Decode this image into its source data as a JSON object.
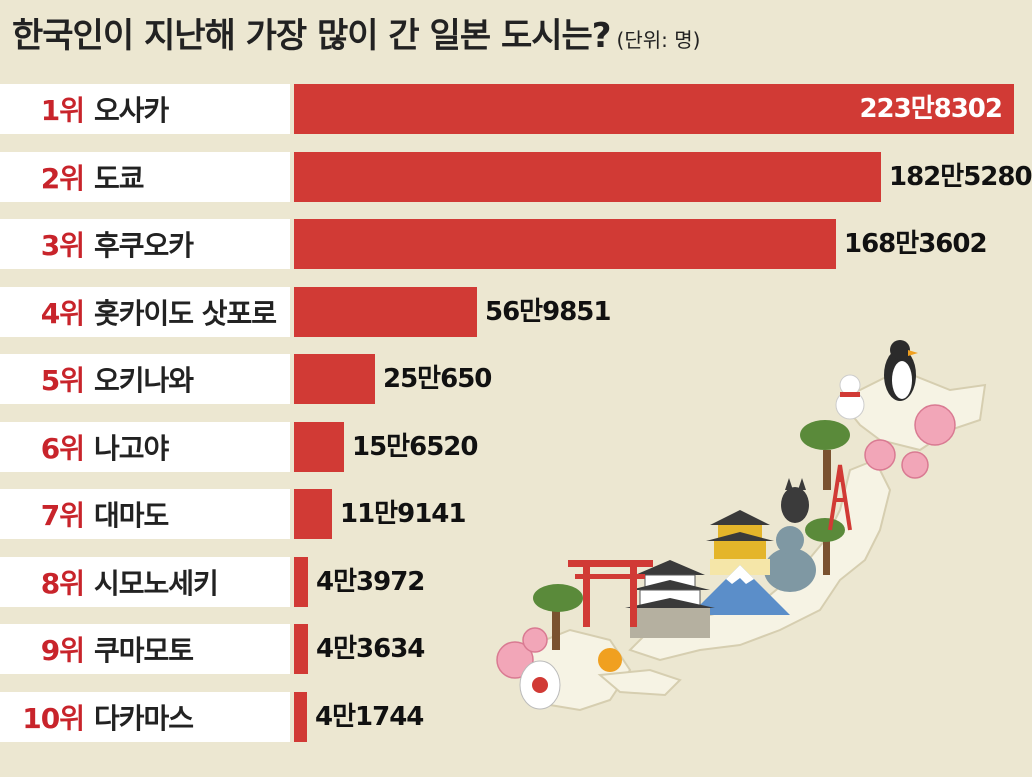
{
  "title": "한국인이 지난해 가장 많이 간 일본 도시는?",
  "unit": "(단위: 명)",
  "chart_data": {
    "type": "bar",
    "orientation": "horizontal",
    "title": "한국인이 지난해 가장 많이 간 일본 도시는?",
    "unit": "(단위: 명)",
    "categories": [
      "오사카",
      "도쿄",
      "후쿠오카",
      "홋카이도 삿포로",
      "오키나와",
      "나고야",
      "대마도",
      "시모노세키",
      "쿠마모토",
      "다카마스"
    ],
    "ranks": [
      "1위",
      "2위",
      "3위",
      "4위",
      "5위",
      "6위",
      "7위",
      "8위",
      "9위",
      "10위"
    ],
    "values": [
      2238302,
      1825280,
      1683602,
      569851,
      250650,
      156520,
      119141,
      43972,
      43634,
      41744
    ],
    "value_labels": [
      "223만8302",
      "182만5280",
      "168만3602",
      "56만9851",
      "25만650",
      "15만6520",
      "11만9141",
      "4만3972",
      "4만3634",
      "4만1744"
    ],
    "colors": {
      "bar": "#d13a35",
      "rank": "#c8242b",
      "background": "#ece7d1"
    }
  },
  "illustration": {
    "icons": [
      "japan-map",
      "torii-gate",
      "castle",
      "mount-fuji",
      "golden-pavilion",
      "great-buddha",
      "tokyo-tower",
      "penguin",
      "snowman",
      "cherry-blossom",
      "bonsai-tree",
      "lantern",
      "orange",
      "shiba-dog"
    ]
  }
}
